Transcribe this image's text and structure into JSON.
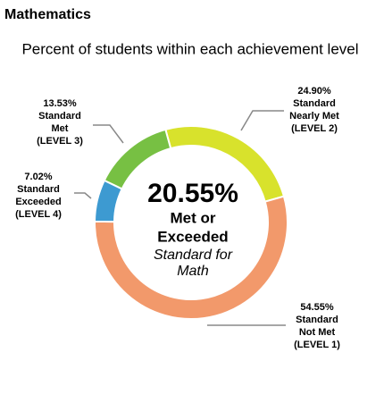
{
  "chart_data": {
    "type": "donut",
    "title": "Mathematics",
    "subtitle": "Percent of students within each achievement level",
    "center_value": "20.55%",
    "center_label": [
      "Met or",
      "Exceeded"
    ],
    "center_note": [
      "Standard for",
      "Math"
    ],
    "series": [
      {
        "name": [
          "Standard",
          "Nearly Met",
          "(LEVEL 2)"
        ],
        "value": 24.9,
        "value_label": "24.90%",
        "color": "#d8e22c"
      },
      {
        "name": [
          "Standard",
          "Not Met",
          "(LEVEL 1)"
        ],
        "value": 54.55,
        "value_label": "54.55%",
        "color": "#f2996b"
      },
      {
        "name": [
          "Standard",
          "Exceeded",
          "(LEVEL 4)"
        ],
        "value": 7.02,
        "value_label": "7.02%",
        "color": "#3d9ad1"
      },
      {
        "name": [
          "Standard",
          "Met",
          "(LEVEL 3)"
        ],
        "value": 13.53,
        "value_label": "13.53%",
        "color": "#77c043"
      }
    ]
  }
}
